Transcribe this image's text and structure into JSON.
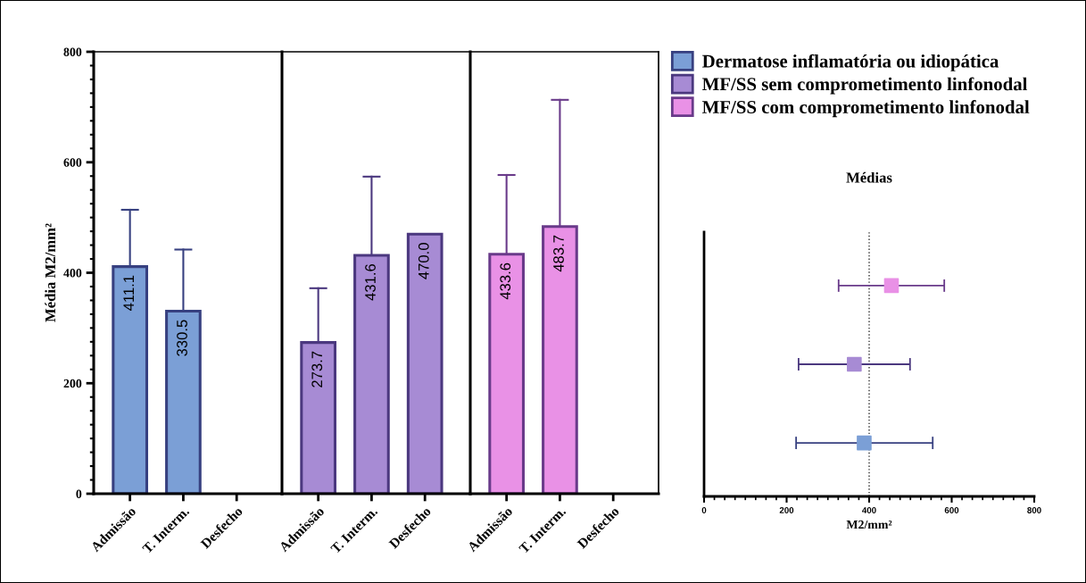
{
  "chart_data": [
    {
      "type": "bar",
      "categories": [
        "Admissão",
        "T. Interm.",
        "Desfecho"
      ],
      "ylabel": "Média M2/mm²",
      "ylim": [
        0,
        800
      ],
      "yticks": [
        0,
        200,
        400,
        600,
        800
      ],
      "legend": "right",
      "series": [
        {
          "name": "Dermatose inflamatória ou idiopática",
          "color": "#7b9fd6",
          "values": [
            411.1,
            330.5,
            null
          ],
          "value_labels": [
            "411.1",
            "330.5",
            null
          ],
          "errors": [
            [
              411.1,
              514
            ],
            [
              330.5,
              442
            ],
            null
          ]
        }
      ]
    },
    {
      "type": "bar",
      "categories": [
        "Admissão",
        "T. Interm.",
        "Desfecho"
      ],
      "ylim": [
        0,
        800
      ],
      "tick_labels": "x",
      "legend": "right",
      "series": [
        {
          "name": "MF/SS sem comprometimento linfonodal",
          "color": "#a78bd4",
          "values": [
            273.7,
            431.6,
            470.0
          ],
          "value_labels": [
            "273.7",
            "431.6",
            "470.0"
          ],
          "errors": [
            [
              273.7,
              372
            ],
            [
              431.6,
              574
            ],
            null
          ]
        }
      ]
    },
    {
      "type": "bar",
      "categories": [
        "Admissão",
        "T. Interm.",
        "Desfecho"
      ],
      "ylim": [
        0,
        800
      ],
      "tick_labels": "x",
      "legend": "right",
      "series": [
        {
          "name": "MF/SS com comprometimento linfonodal",
          "color": "#e991e6",
          "values": [
            433.6,
            483.7,
            null
          ],
          "value_labels": [
            "433.6",
            "483.7",
            null
          ],
          "errors": [
            [
              433.6,
              577
            ],
            [
              483.7,
              713
            ],
            null
          ]
        }
      ]
    },
    {
      "type": "scatter",
      "orientation": "horizontal",
      "title": "Médias",
      "xlabel": "M2/mm²",
      "categories": [
        null,
        null,
        null
      ],
      "xlim": [
        0,
        800
      ],
      "xticks": [
        0,
        200,
        400,
        600,
        800
      ],
      "marker": "square",
      "tick_labels": "x",
      "ref_lines": [
        {
          "axis": "x",
          "value": 400,
          "line_style": "dotted",
          "color": "#333333"
        }
      ],
      "colors": [
        "#e991e6",
        "#a78bd4",
        "#7b9fd6"
      ],
      "values": [
        454,
        364,
        388
      ],
      "errors": [
        [
          326,
          582
        ],
        [
          229,
          499
        ],
        [
          223,
          554
        ]
      ]
    }
  ]
}
